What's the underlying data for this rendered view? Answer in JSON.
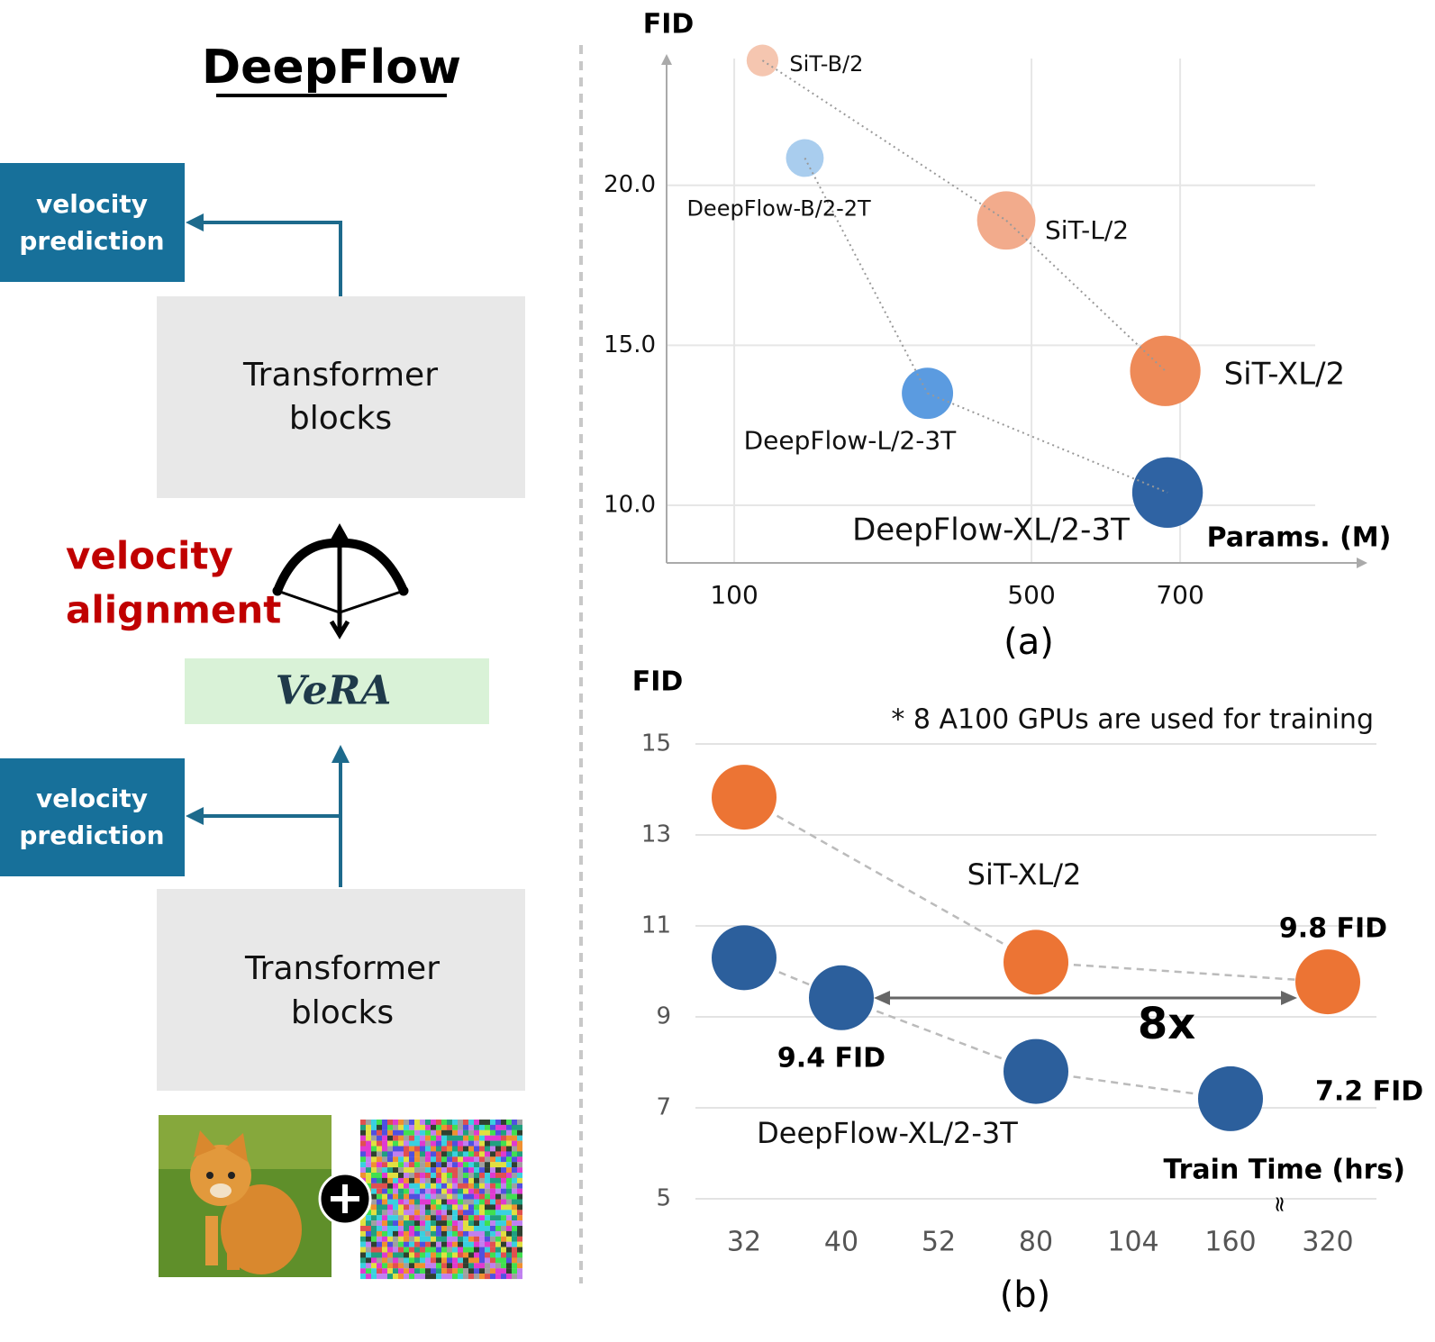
{
  "diagram": {
    "title": "DeepFlow",
    "upper_output": [
      "velocity",
      "prediction"
    ],
    "upper_block": [
      "Transformer",
      "blocks"
    ],
    "alignment": [
      "velocity",
      "alignment"
    ],
    "module": "VeRA",
    "lower_output": [
      "velocity",
      "prediction"
    ],
    "lower_block": [
      "Transformer",
      "blocks"
    ]
  },
  "chart_data": [
    {
      "type": "bubble",
      "ylabel": "FID",
      "xlabel": "Params. (M)",
      "caption": "(a)",
      "xlim": [
        9,
        952
      ],
      "xticks": [
        100,
        500,
        700
      ],
      "ylim": [
        8.2,
        24.1
      ],
      "yticks": [
        {
          "value": 10,
          "label": "10.0"
        },
        {
          "value": 15,
          "label": "15.0"
        },
        {
          "value": 20,
          "label": "20.0"
        }
      ],
      "grid": true,
      "series": [
        {
          "labels": [
            "SiT-B/2",
            "SiT-L/2",
            "SiT-XL/2"
          ],
          "x": [
            138,
            466,
            680
          ],
          "values": [
            23.9,
            18.9,
            14.2
          ],
          "colors": [
            "#f5c6b0",
            "#f2ab8c",
            "#ee8a58"
          ]
        },
        {
          "labels": [
            "DeepFlow-B/2-2T",
            "DeepFlow-L/2-3T",
            "DeepFlow-XL/2-3T"
          ],
          "x": [
            195,
            360,
            683
          ],
          "values": [
            20.85,
            13.5,
            10.4
          ],
          "colors": [
            "#a9cdee",
            "#5b9be0",
            "#2f63a3"
          ]
        }
      ]
    },
    {
      "type": "scatter",
      "ylabel": "FID",
      "xlabel": "Train Time (hrs)",
      "caption": "(b)",
      "note": "* 8 A100 GPUs are used for training",
      "annotation": "8x",
      "categories": [
        32,
        40,
        52,
        80,
        104,
        160,
        320
      ],
      "ylim": [
        5,
        15
      ],
      "yticks": [
        5,
        7,
        9,
        11,
        13,
        15
      ],
      "grid": true,
      "series": [
        {
          "name": "SiT-XL/2",
          "color": "#ec7434",
          "values": [
            13.83,
            null,
            null,
            10.2,
            null,
            null,
            9.77
          ],
          "value_labels": [
            null,
            null,
            null,
            null,
            null,
            null,
            "9.8 FID"
          ]
        },
        {
          "name": "DeepFlow-XL/2-3T",
          "color": "#2c5f9c",
          "values": [
            10.3,
            9.42,
            null,
            7.8,
            null,
            7.2,
            null
          ],
          "value_labels": [
            null,
            "9.4 FID",
            null,
            null,
            null,
            "7.2 FID",
            null
          ]
        }
      ]
    }
  ]
}
